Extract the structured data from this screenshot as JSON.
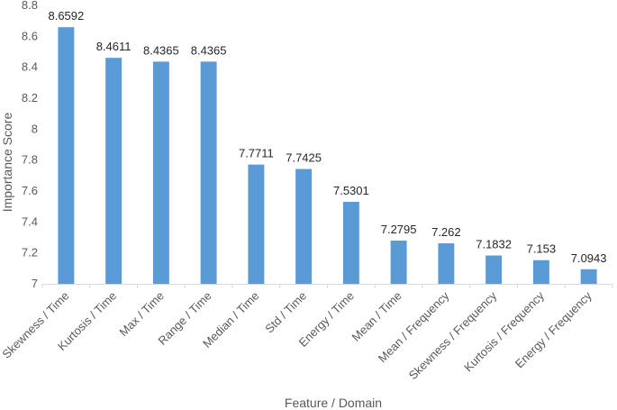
{
  "chart_data": {
    "type": "bar",
    "title": "",
    "xlabel": "Feature / Domain",
    "ylabel": "Importance Score",
    "ylim": [
      7,
      8.8
    ],
    "yticks": [
      "7",
      "7.2",
      "7.4",
      "7.6",
      "7.8",
      "8",
      "8.2",
      "8.4",
      "8.6",
      "8.8"
    ],
    "ytick_values": [
      7,
      7.2,
      7.4,
      7.6,
      7.8,
      8,
      8.2,
      8.4,
      8.6,
      8.8
    ],
    "grid": false,
    "bar_color": "#5B9BD5",
    "categories": [
      "Skewness / Time",
      "Kurtosis / Time",
      "Max / Time",
      "Range / Time",
      "Median / Time",
      "Std / Time",
      "Energy / Time",
      "Mean / Time",
      "Mean / Frequency",
      "Skewness / Frequency",
      "Kurtosis / Frequency",
      "Energy / Frequency"
    ],
    "values": [
      8.6592,
      8.4611,
      8.4365,
      8.4365,
      7.7711,
      7.7425,
      7.5301,
      7.2795,
      7.262,
      7.1832,
      7.153,
      7.0943
    ],
    "value_labels": [
      "8.6592",
      "8.4611",
      "8.4365",
      "8.4365",
      "7.7711",
      "7.7425",
      "7.5301",
      "7.2795",
      "7.262",
      "7.1832",
      "7.153",
      "7.0943"
    ]
  }
}
